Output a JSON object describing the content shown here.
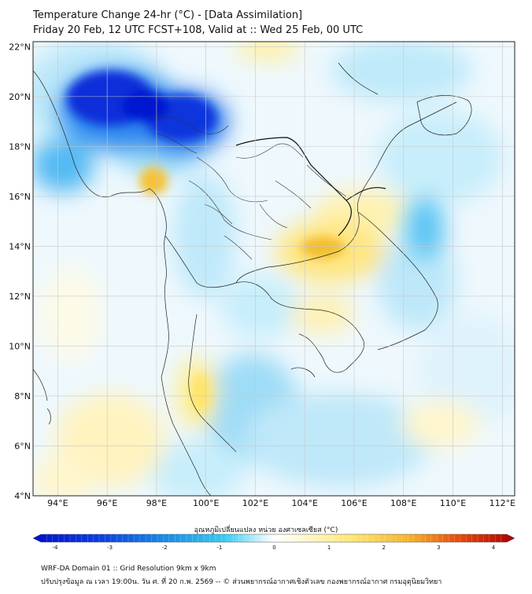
{
  "header": {
    "title": "Temperature Change 24-hr (°C) - [Data Assimilation]",
    "subtitle": "Friday 20 Feb, 12 UTC FCST+108, Valid at :: Wed 25 Feb, 00 UTC"
  },
  "map": {
    "lon_range": [
      93,
      112.5
    ],
    "lat_range": [
      4,
      22.2
    ],
    "lon_ticks": [
      "94°E",
      "96°E",
      "98°E",
      "100°E",
      "102°E",
      "104°E",
      "106°E",
      "108°E",
      "110°E",
      "112°E"
    ],
    "lat_ticks": [
      "4°N",
      "6°N",
      "8°N",
      "10°N",
      "12°N",
      "14°N",
      "16°N",
      "18°N",
      "20°N",
      "22°N"
    ],
    "gridlines": true,
    "variable_min": -4,
    "variable_max": 4
  },
  "colorbar": {
    "title": "อุณหภูมิเปลี่ยนแปลง หน่วย องศาเซลเซียส (°C)",
    "labels": [
      "-4",
      "-3",
      "-2",
      "-1",
      "0",
      "1",
      "2",
      "3",
      "4"
    ],
    "colors": {
      "cold_max": "#0010c8",
      "cold": "#1a8fe6",
      "cool": "#27c7ef",
      "neutral": "#ffffff",
      "warm": "#ffe873",
      "hot": "#f2a31a",
      "hot_max": "#a80000"
    }
  },
  "footer": {
    "line1": "WRF-DA Domain 01 :: Grid Resolution 9km x 9km",
    "line2": "ปรับปรุงข้อมูล ณ เวลา 19:00น. วัน ศ. ที่ 20 ก.พ. 2569 -- © ส่วนพยากรณ์อากาศเชิงตัวเลข กองพยากรณ์อากาศ กรมอุตุนิยมวิทยา"
  }
}
